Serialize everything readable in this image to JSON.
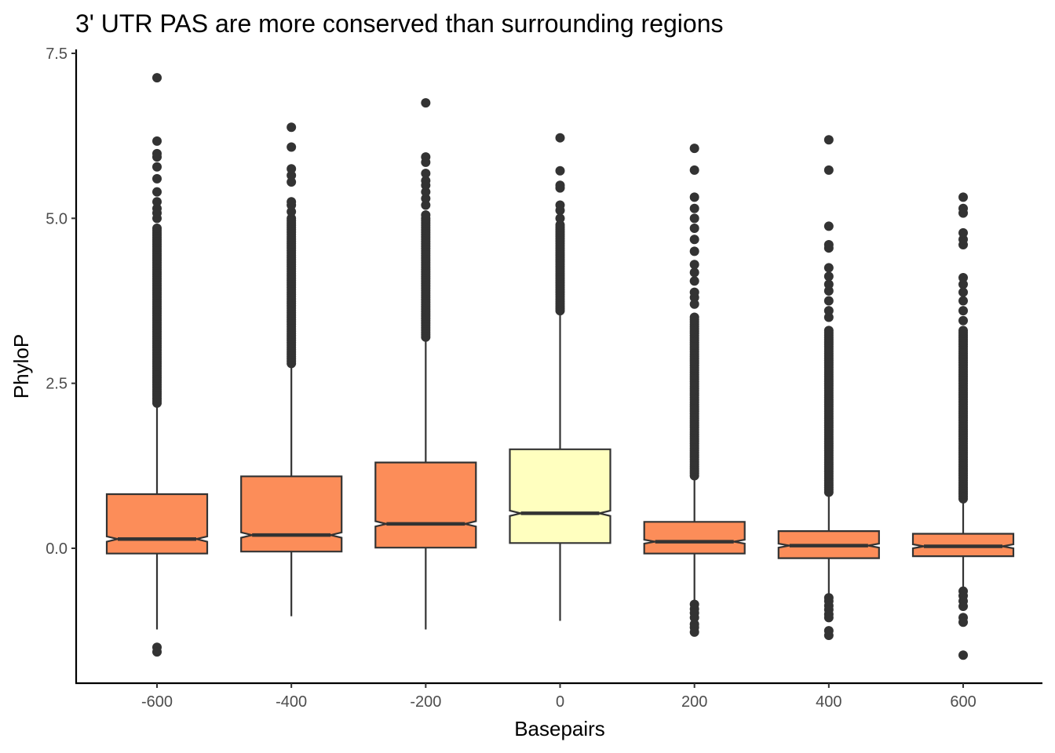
{
  "chart_data": {
    "type": "boxplot",
    "title": "3' UTR PAS are more conserved than surrounding regions",
    "xlabel": "Basepairs",
    "ylabel": "PhyloP",
    "categories": [
      "-600",
      "-400",
      "-200",
      "0",
      "200",
      "400",
      "600"
    ],
    "y_ticks": [
      "0.0",
      "2.5",
      "5.0",
      "7.5"
    ],
    "y_tick_values": [
      0,
      2.5,
      5.0,
      7.5
    ],
    "ylim": [
      -2.05,
      7.6
    ],
    "notched": true,
    "grid": false,
    "legend": "none",
    "colors": {
      "default_fill": "#fc8d59",
      "highlight_fill": "#ffffbf",
      "stroke": "#333333",
      "outlier": "#333333"
    },
    "boxes": [
      {
        "x": "-600",
        "q1": -0.08,
        "median": 0.14,
        "q3": 0.82,
        "whisker_low": -1.23,
        "whisker_high": 2.2,
        "notch_low": 0.1,
        "notch_high": 0.18,
        "highlight": false,
        "outliers_high_range": [
          2.2,
          4.85
        ],
        "outliers_high": [
          5.0,
          5.08,
          5.15,
          5.25,
          5.4,
          5.6,
          5.78,
          5.93,
          5.98,
          6.17,
          7.13
        ],
        "outliers_low": [
          -1.5,
          -1.57
        ]
      },
      {
        "x": "-400",
        "q1": -0.05,
        "median": 0.2,
        "q3": 1.09,
        "whisker_low": -1.03,
        "whisker_high": 2.8,
        "notch_low": 0.16,
        "notch_high": 0.24,
        "highlight": false,
        "outliers_high_range": [
          2.8,
          5.0
        ],
        "outliers_high": [
          5.1,
          5.2,
          5.25,
          5.55,
          5.65,
          5.75,
          6.08,
          6.38
        ],
        "outliers_low": []
      },
      {
        "x": "-200",
        "q1": 0.01,
        "median": 0.37,
        "q3": 1.3,
        "whisker_low": -1.23,
        "whisker_high": 3.2,
        "notch_low": 0.33,
        "notch_high": 0.41,
        "highlight": false,
        "outliers_high_range": [
          3.2,
          5.0
        ],
        "outliers_high": [
          5.05,
          5.2,
          5.3,
          5.4,
          5.5,
          5.57,
          5.68,
          5.85,
          5.93,
          6.75
        ],
        "outliers_low": []
      },
      {
        "x": "0",
        "q1": 0.08,
        "median": 0.53,
        "q3": 1.5,
        "whisker_low": -1.1,
        "whisker_high": 3.6,
        "notch_low": 0.49,
        "notch_high": 0.57,
        "highlight": true,
        "outliers_high_range": [
          3.6,
          4.9
        ],
        "outliers_high": [
          5.0,
          5.12,
          5.2,
          5.46,
          5.5,
          5.72,
          6.22
        ],
        "outliers_low": []
      },
      {
        "x": "200",
        "q1": -0.08,
        "median": 0.1,
        "q3": 0.4,
        "whisker_low": -0.85,
        "whisker_high": 1.1,
        "notch_low": 0.07,
        "notch_high": 0.13,
        "highlight": false,
        "outliers_high_range": [
          1.1,
          3.5
        ],
        "outliers_high": [
          3.7,
          3.8,
          3.88,
          4.05,
          4.18,
          4.3,
          4.5,
          4.68,
          4.85,
          5.0,
          5.15,
          5.32,
          5.73,
          6.06
        ],
        "outliers_low": [
          -0.85,
          -0.92,
          -0.98,
          -1.05,
          -1.15,
          -1.2,
          -1.27
        ]
      },
      {
        "x": "400",
        "q1": -0.15,
        "median": 0.04,
        "q3": 0.26,
        "whisker_low": -0.7,
        "whisker_high": 0.85,
        "notch_low": 0.01,
        "notch_high": 0.07,
        "highlight": false,
        "outliers_high_range": [
          0.85,
          3.3
        ],
        "outliers_high": [
          3.5,
          3.6,
          3.75,
          3.9,
          4.0,
          4.12,
          4.25,
          4.55,
          4.6,
          4.88,
          5.73,
          6.19
        ],
        "outliers_low": [
          -0.75,
          -0.8,
          -0.87,
          -0.93,
          -1.0,
          -1.05,
          -1.25,
          -1.32
        ]
      },
      {
        "x": "600",
        "q1": -0.12,
        "median": 0.03,
        "q3": 0.22,
        "whisker_low": -0.62,
        "whisker_high": 0.75,
        "notch_low": 0.0,
        "notch_high": 0.06,
        "highlight": false,
        "outliers_high_range": [
          0.75,
          3.3
        ],
        "outliers_high": [
          3.45,
          3.6,
          3.75,
          3.88,
          4.0,
          4.1,
          4.6,
          4.68,
          4.78,
          5.08,
          5.15,
          5.32
        ],
        "outliers_low": [
          -0.65,
          -0.72,
          -0.8,
          -0.88,
          -1.05,
          -1.12,
          -1.62
        ]
      }
    ]
  }
}
